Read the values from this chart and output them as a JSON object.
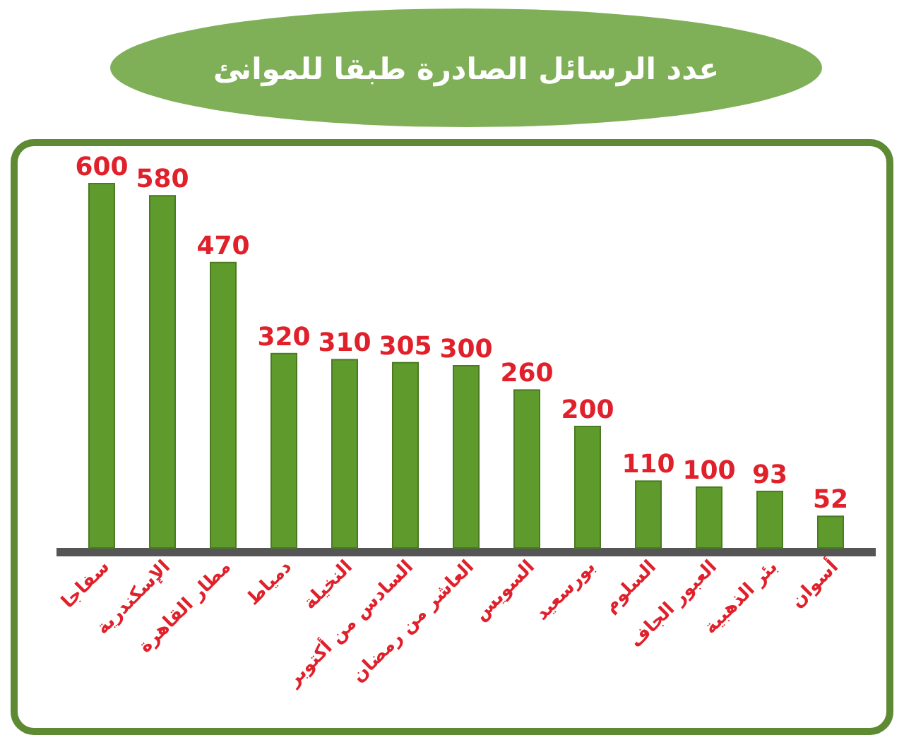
{
  "chart_data": {
    "type": "bar",
    "title": "عدد الرسائل الصادرة طبقا للموانئ",
    "categories": [
      "سفاجا",
      "الإسكندرية",
      "مطار القاهرة",
      "دمياط",
      "النخيلة",
      "السادس من أكتوبر",
      "العاشر من رمضان",
      "السويس",
      "بورسعيد",
      "السلوم",
      "العبور الجاف",
      "بئر الذهبية",
      "أسوان"
    ],
    "values": [
      600,
      580,
      470,
      320,
      310,
      305,
      300,
      260,
      200,
      110,
      100,
      93,
      52
    ],
    "color": "#5e9a2c",
    "data_labels": true
  }
}
